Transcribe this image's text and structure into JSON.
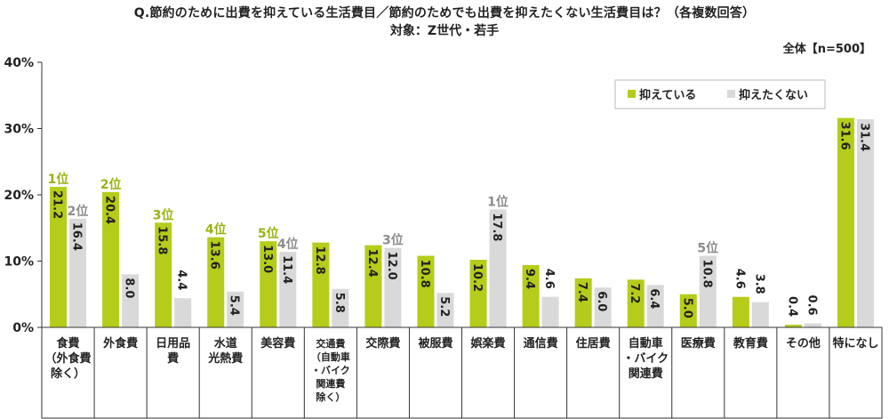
{
  "title": "Q.節約のために出費を抑えている生活費目／節約のためでも出費を抑えたくない生活費目は？（各複数回答）",
  "subtitle": "対象：Z世代・若手",
  "basis": "全体【n=500】",
  "colors": {
    "suppress": "#b5cc1a",
    "not_suppress": "#d9d9d9",
    "rank_suppress": "#9bb10e",
    "rank_not": "#8c8c8c"
  },
  "chart_data": {
    "type": "bar",
    "categories": [
      [
        "食費",
        "（外食費",
        "除く）"
      ],
      [
        "外食費"
      ],
      [
        "日用品",
        "費"
      ],
      [
        "水道",
        "光熱費"
      ],
      [
        "美容費"
      ],
      [
        "交通費",
        "（自動車",
        "・バイク",
        "関連費",
        "除く）"
      ],
      [
        "交際費"
      ],
      [
        "被服費"
      ],
      [
        "娯楽費"
      ],
      [
        "通信費"
      ],
      [
        "住居費"
      ],
      [
        "自動車",
        "・バイク",
        "関連費"
      ],
      [
        "医療費"
      ],
      [
        "教育費"
      ],
      [
        "その他"
      ],
      [
        "特になし"
      ]
    ],
    "series": [
      {
        "name": "抑えている",
        "values": [
          21.2,
          20.4,
          15.8,
          13.6,
          13.0,
          12.8,
          12.4,
          10.8,
          10.2,
          9.4,
          7.4,
          7.2,
          5.0,
          4.6,
          0.4,
          31.6
        ],
        "value_labels": [
          "21.2",
          "20.4",
          "15.8",
          "13.6",
          "13.0",
          "12.8",
          "12.4",
          "10.8",
          "10.2",
          "9.4",
          "7.4",
          "7.2",
          "5.0",
          "4.6",
          "0.4",
          "31.6"
        ],
        "ranks": [
          "1位",
          "2位",
          "3位",
          "4位",
          "5位",
          "",
          "",
          "",
          "",
          "",
          "",
          "",
          "",
          "",
          "",
          ""
        ]
      },
      {
        "name": "抑えたくない",
        "values": [
          16.4,
          8.0,
          4.4,
          5.4,
          11.4,
          5.8,
          12.0,
          5.2,
          17.8,
          4.6,
          6.0,
          6.4,
          10.8,
          3.8,
          0.6,
          31.4
        ],
        "value_labels": [
          "16.4",
          "8.0",
          "4.4",
          "5.4",
          "11.4",
          "5.8",
          "12.0",
          "5.2",
          "17.8",
          "4.6",
          "6.0",
          "6.4",
          "10.8",
          "3.8",
          "0.6",
          "31.4"
        ],
        "ranks": [
          "2位",
          "",
          "",
          "",
          "4位",
          "",
          "3位",
          "",
          "1位",
          "",
          "",
          "",
          "5位",
          "",
          "",
          ""
        ]
      }
    ],
    "y_ticks": [
      "0%",
      "10%",
      "20%",
      "30%",
      "40%"
    ],
    "ylim": [
      0,
      40
    ],
    "legend_position": "top-right",
    "grid": false
  }
}
